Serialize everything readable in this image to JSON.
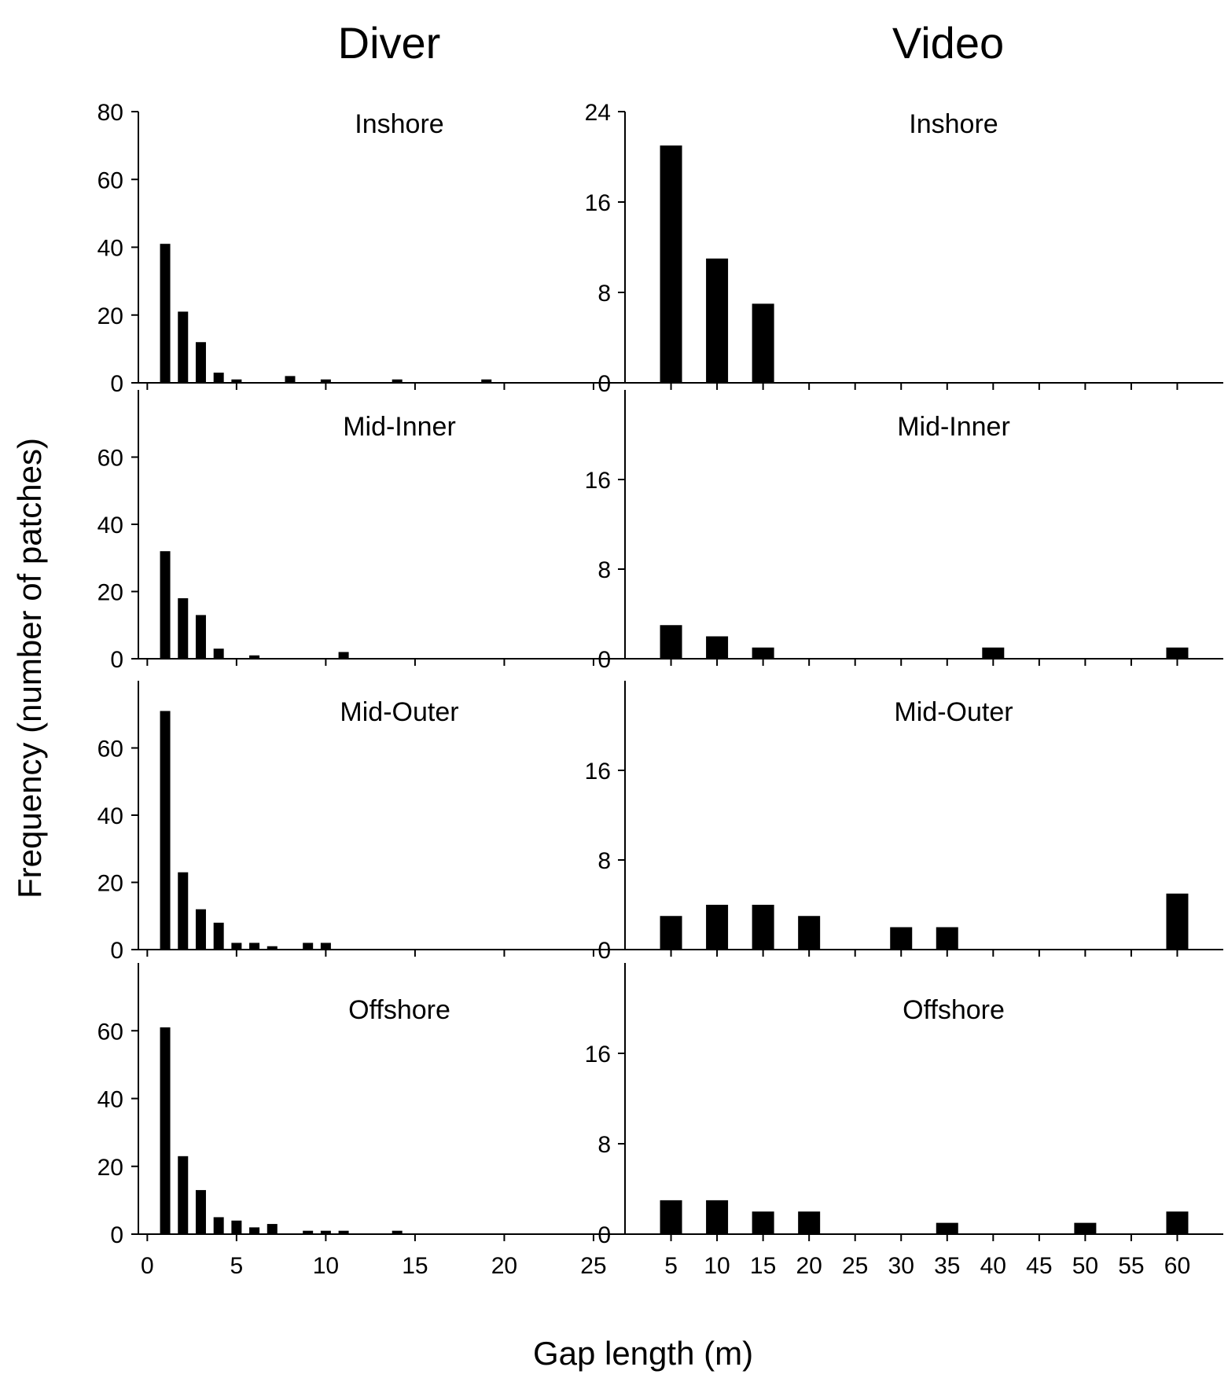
{
  "figure": {
    "ylabel": "Frequency (number of patches)",
    "xlabel": "Gap length (m)",
    "columns": [
      "Diver",
      "Video"
    ]
  },
  "colors": {
    "bar": "#000000",
    "axis": "#000000",
    "background": "#ffffff"
  },
  "chart_data": [
    {
      "type": "bar",
      "column": "Diver",
      "title": "Inshore",
      "x": [
        1,
        2,
        3,
        4,
        5,
        8,
        10,
        14,
        19
      ],
      "values": [
        41,
        21,
        12,
        3,
        1,
        2,
        1,
        1,
        1
      ],
      "xlim": [
        -0.5,
        26.5
      ],
      "ylim": [
        0,
        80
      ],
      "yticks": [
        0,
        20,
        40,
        60,
        80
      ],
      "xticks": [
        0,
        5,
        10,
        15,
        20,
        25
      ]
    },
    {
      "type": "bar",
      "column": "Diver",
      "title": "Mid-Inner",
      "x": [
        1,
        2,
        3,
        4,
        6,
        11
      ],
      "values": [
        32,
        18,
        13,
        3,
        1,
        2
      ],
      "xlim": [
        -0.5,
        26.5
      ],
      "ylim": [
        0,
        80
      ],
      "yticks": [
        0,
        20,
        40,
        60
      ],
      "xticks": [
        0,
        5,
        10,
        15,
        20,
        25
      ]
    },
    {
      "type": "bar",
      "column": "Diver",
      "title": "Mid-Outer",
      "x": [
        1,
        2,
        3,
        4,
        5,
        6,
        7,
        9,
        10
      ],
      "values": [
        71,
        23,
        12,
        8,
        2,
        2,
        1,
        2,
        2
      ],
      "xlim": [
        -0.5,
        26.5
      ],
      "ylim": [
        0,
        80
      ],
      "yticks": [
        0,
        20,
        40,
        60
      ],
      "xticks": [
        0,
        5,
        10,
        15,
        20,
        25
      ]
    },
    {
      "type": "bar",
      "column": "Diver",
      "title": "Offshore",
      "x": [
        1,
        2,
        3,
        4,
        5,
        6,
        7,
        9,
        10,
        11,
        14
      ],
      "values": [
        61,
        23,
        13,
        5,
        4,
        2,
        3,
        1,
        1,
        1,
        1
      ],
      "xlim": [
        -0.5,
        26.5
      ],
      "ylim": [
        0,
        80
      ],
      "yticks": [
        0,
        20,
        40,
        60
      ],
      "xticks": [
        0,
        5,
        10,
        15,
        20,
        25
      ],
      "xtick_labels": [
        "0",
        "5",
        "10",
        "15",
        "20",
        "25"
      ]
    },
    {
      "type": "bar",
      "column": "Video",
      "title": "Inshore",
      "x": [
        5,
        10,
        15
      ],
      "values": [
        21,
        11,
        7
      ],
      "xlim": [
        0,
        65
      ],
      "ylim": [
        0,
        24
      ],
      "yticks": [
        0,
        8,
        16,
        24
      ],
      "xticks": [
        5,
        10,
        15,
        20,
        25,
        30,
        35,
        40,
        45,
        50,
        55,
        60
      ]
    },
    {
      "type": "bar",
      "column": "Video",
      "title": "Mid-Inner",
      "x": [
        5,
        10,
        15,
        40,
        60
      ],
      "values": [
        3,
        2,
        1,
        1,
        1
      ],
      "xlim": [
        0,
        65
      ],
      "ylim": [
        0,
        24
      ],
      "yticks": [
        0,
        8,
        16
      ],
      "xticks": [
        5,
        10,
        15,
        20,
        25,
        30,
        35,
        40,
        45,
        50,
        55,
        60
      ]
    },
    {
      "type": "bar",
      "column": "Video",
      "title": "Mid-Outer",
      "x": [
        5,
        10,
        15,
        20,
        30,
        35,
        60
      ],
      "values": [
        3,
        4,
        4,
        3,
        2,
        2,
        5
      ],
      "xlim": [
        0,
        65
      ],
      "ylim": [
        0,
        24
      ],
      "yticks": [
        0,
        8,
        16
      ],
      "xticks": [
        5,
        10,
        15,
        20,
        25,
        30,
        35,
        40,
        45,
        50,
        55,
        60
      ]
    },
    {
      "type": "bar",
      "column": "Video",
      "title": "Offshore",
      "x": [
        5,
        10,
        15,
        20,
        35,
        50,
        60
      ],
      "values": [
        3,
        3,
        2,
        2,
        1,
        1,
        2
      ],
      "xlim": [
        0,
        65
      ],
      "ylim": [
        0,
        24
      ],
      "yticks": [
        0,
        8,
        16
      ],
      "xticks": [
        5,
        10,
        15,
        20,
        25,
        30,
        35,
        40,
        45,
        50,
        55,
        60
      ],
      "xtick_labels": [
        "5",
        "10",
        "15",
        "20",
        "25",
        "30",
        "35",
        "40",
        "45",
        "50",
        "55",
        "60"
      ]
    }
  ]
}
